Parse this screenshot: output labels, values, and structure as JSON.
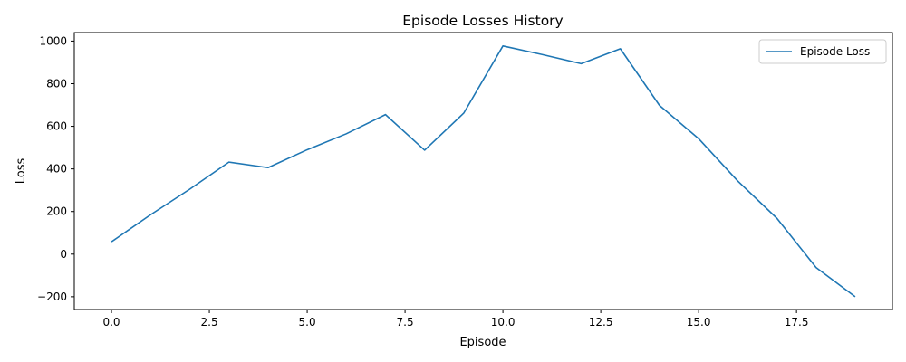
{
  "chart_data": {
    "type": "line",
    "title": "Episode Losses History",
    "xlabel": "Episode",
    "ylabel": "Loss",
    "xlim": [
      -0.95,
      19.95
    ],
    "ylim": [
      -260,
      1040
    ],
    "xticks": [
      0.0,
      2.5,
      5.0,
      7.5,
      10.0,
      12.5,
      15.0,
      17.5
    ],
    "xtick_labels": [
      "0.0",
      "2.5",
      "5.0",
      "7.5",
      "10.0",
      "12.5",
      "15.0",
      "17.5"
    ],
    "yticks": [
      -200,
      0,
      200,
      400,
      600,
      800,
      1000
    ],
    "ytick_labels": [
      "−200",
      "0",
      "200",
      "400",
      "600",
      "800",
      "1000"
    ],
    "grid": false,
    "legend_position": "top-right",
    "series": [
      {
        "name": "Episode Loss",
        "color": "#1f77b4",
        "x": [
          0,
          1,
          2,
          3,
          4,
          5,
          6,
          7,
          8,
          9,
          10,
          11,
          12,
          13,
          14,
          15,
          16,
          17,
          18,
          19
        ],
        "values": [
          58,
          185,
          305,
          432,
          406,
          490,
          565,
          655,
          488,
          662,
          977,
          937,
          894,
          964,
          698,
          542,
          343,
          168,
          -63,
          -200
        ]
      }
    ]
  }
}
